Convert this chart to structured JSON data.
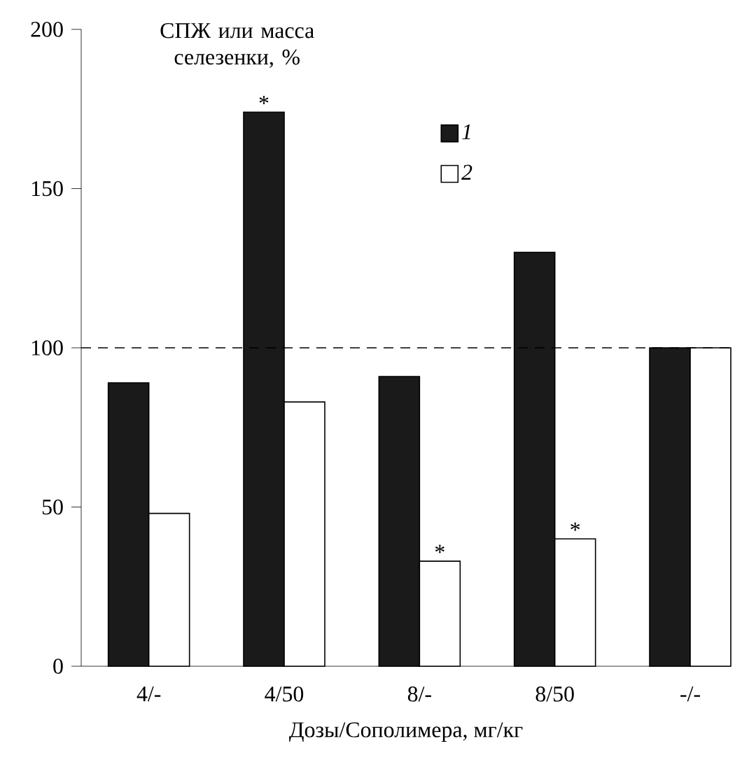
{
  "chart_data": {
    "type": "bar",
    "ylabel": "СПЖ или масса селезенки, %",
    "xlabel": "Дозы/Сополимера, мг/кг",
    "categories": [
      "4/-",
      "4/50",
      "8/-",
      "8/50",
      "-/-"
    ],
    "series": [
      {
        "name": "1",
        "color": "#1a1a1a",
        "values": [
          89,
          174,
          91,
          130,
          100
        ]
      },
      {
        "name": "2",
        "color": "#ffffff",
        "values": [
          48,
          83,
          33,
          40,
          100
        ]
      }
    ],
    "ylim": [
      0,
      200
    ],
    "yticks": [
      0,
      50,
      100,
      150,
      200
    ],
    "ref_lines": [
      {
        "axis": "y",
        "value": 100,
        "line_style": "dashed"
      }
    ],
    "annotations": [
      {
        "text": "*",
        "x": "4/50",
        "y": 174
      },
      {
        "text": "*",
        "x": "8/-",
        "y": 33
      },
      {
        "text": "*",
        "x": "8/50",
        "y": 40
      }
    ],
    "legend": "top"
  }
}
